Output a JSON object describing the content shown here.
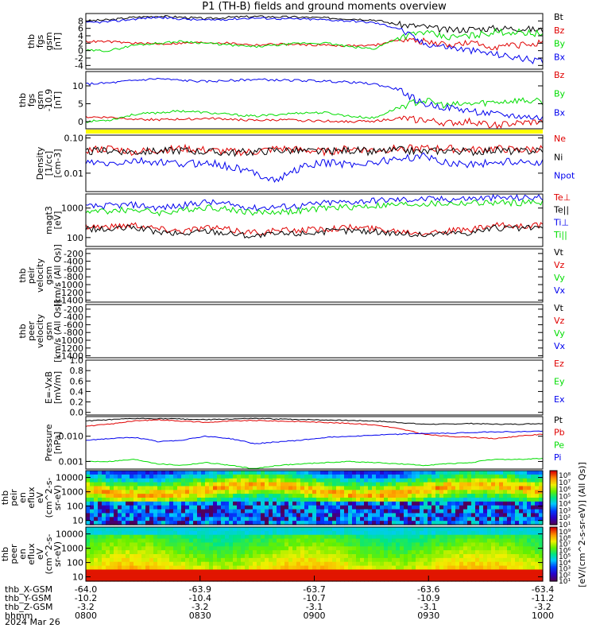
{
  "title": "P1 (TH-B) fields and ground moments overview",
  "date": "2024 Mar 26",
  "colors": {
    "black": "#000000",
    "red": "#e00000",
    "green": "#00dd00",
    "blue": "#0000ee",
    "yellow": "#ffff00"
  },
  "colorbar_top": {
    "ticks": [
      "10⁸",
      "10⁷",
      "10⁶",
      "10⁵",
      "10⁴",
      "10³",
      "10²",
      "10¹"
    ]
  },
  "colorbar_bottom": {
    "ticks": [
      "10⁹",
      "10⁸",
      "10⁷",
      "10⁶",
      "10⁵",
      "10⁴",
      "10³",
      "10²",
      "10¹"
    ]
  },
  "colorbar_label": "[eV/(cm^2-s-sr-eV)] (All Qs)]",
  "axis_footer": {
    "rows": [
      {
        "label": "thb_X-GSM",
        "values": [
          "-64.0",
          "-63.9",
          "-63.7",
          "-63.6",
          "-63.4"
        ]
      },
      {
        "label": "thb_Y-GSM",
        "values": [
          "-10.2",
          "-10.4",
          "-10.7",
          "-10.9",
          "-11.2"
        ]
      },
      {
        "label": "thb_Z-GSM",
        "values": [
          "-3.2",
          "-3.2",
          "-3.1",
          "-3.1",
          "-3.2"
        ]
      },
      {
        "label": "hhmm",
        "values": [
          "0800",
          "0830",
          "0900",
          "0930",
          "1000"
        ]
      }
    ]
  },
  "chart_data": [
    {
      "type": "line",
      "id": "fgs",
      "ylabel": [
        "thb",
        "fgs",
        "gsm",
        "[nT]"
      ],
      "ylim": [
        -5,
        10
      ],
      "yticks": [
        "8",
        "6",
        "4",
        "2",
        "0",
        "-2",
        "-4"
      ],
      "series": [
        {
          "name": "Bt",
          "color": "black",
          "values": [
            8.0,
            8.3,
            9.0,
            9.3,
            9.0,
            8.6,
            9.0,
            9.2,
            9.1,
            9.0,
            8.8,
            8.6,
            8.3,
            7.0,
            6.5,
            5.5,
            5.8,
            6.0,
            6.0,
            5.5
          ]
        },
        {
          "name": "Bz",
          "color": "red",
          "values": [
            2.5,
            2.4,
            2.0,
            1.8,
            2.0,
            2.2,
            2.0,
            1.5,
            1.8,
            1.6,
            1.5,
            1.3,
            1.4,
            3.0,
            2.5,
            1.5,
            2.0,
            1.0,
            1.5,
            2.0
          ]
        },
        {
          "name": "By",
          "color": "green",
          "values": [
            0.0,
            0.0,
            1.5,
            2.0,
            2.5,
            2.0,
            1.5,
            1.0,
            1.5,
            2.0,
            2.0,
            1.0,
            0.5,
            3.5,
            5.0,
            3.5,
            4.0,
            5.0,
            5.0,
            4.5
          ]
        },
        {
          "name": "Bx",
          "color": "blue",
          "values": [
            7.5,
            7.8,
            8.5,
            9.0,
            8.5,
            8.2,
            8.5,
            8.8,
            8.6,
            8.5,
            8.3,
            8.0,
            7.5,
            6.0,
            2.0,
            1.0,
            0.0,
            -1.0,
            -2.0,
            -3.0
          ]
        }
      ]
    },
    {
      "type": "line",
      "id": "fgs_dsl",
      "ylabel": [
        "thb",
        "fgs",
        "gsm",
        "-10.9",
        "[nT]"
      ],
      "ylim": [
        -2,
        14
      ],
      "yticks": [
        "10",
        "5",
        "0"
      ],
      "series": [
        {
          "name": "Bz",
          "color": "red",
          "values": [
            1.3,
            1.2,
            0.8,
            0.5,
            0.7,
            0.9,
            0.7,
            0.3,
            0.5,
            0.3,
            0.2,
            0.0,
            0.2,
            0.8,
            0.5,
            -0.5,
            0.0,
            -1.0,
            -0.5,
            0.0
          ]
        },
        {
          "name": "By",
          "color": "green",
          "values": [
            0.0,
            0.5,
            2.0,
            2.5,
            3.0,
            2.5,
            2.0,
            1.5,
            2.0,
            2.5,
            2.5,
            1.5,
            1.0,
            4.0,
            6.0,
            4.5,
            5.0,
            5.5,
            6.0,
            5.5
          ]
        },
        {
          "name": "Bx",
          "color": "blue",
          "values": [
            10.5,
            10.8,
            11.5,
            12.0,
            11.5,
            11.2,
            11.5,
            11.8,
            11.6,
            11.5,
            11.3,
            11.0,
            10.5,
            9.0,
            5.0,
            4.0,
            3.0,
            2.0,
            1.5,
            1.0
          ]
        }
      ]
    },
    {
      "type": "line",
      "id": "density",
      "log": true,
      "ylabel": [
        "Density",
        "[1/cc]",
        "[cm-3]"
      ],
      "ylim": [
        0.003,
        0.12
      ],
      "yticks": [
        "0.10",
        "0.01"
      ],
      "series": [
        {
          "name": "Ne",
          "color": "red",
          "values": [
            0.045,
            0.05,
            0.04,
            0.045,
            0.05,
            0.045,
            0.04,
            0.04,
            0.05,
            0.045,
            0.04,
            0.05,
            0.045,
            0.05,
            0.05,
            0.05,
            0.045,
            0.05,
            0.045,
            0.05
          ]
        },
        {
          "name": "Ni",
          "color": "black",
          "values": [
            0.04,
            0.045,
            0.04,
            0.042,
            0.045,
            0.04,
            0.038,
            0.04,
            0.045,
            0.042,
            0.04,
            0.045,
            0.04,
            0.045,
            0.04,
            0.045,
            0.04,
            0.045,
            0.04,
            0.045
          ]
        },
        {
          "name": "Npot",
          "color": "blue",
          "values": [
            0.02,
            0.018,
            0.022,
            0.02,
            0.018,
            0.02,
            0.015,
            0.01,
            0.006,
            0.015,
            0.02,
            0.018,
            0.02,
            0.025,
            0.03,
            0.02,
            0.018,
            0.02,
            0.022,
            0.02
          ]
        }
      ]
    },
    {
      "type": "line",
      "id": "temp",
      "log": true,
      "ylabel": [
        "magt3",
        "[eV]"
      ],
      "ylim": [
        50,
        3000
      ],
      "yticks": [
        "1000",
        "100"
      ],
      "series": [
        {
          "name": "Te⊥",
          "color": "red",
          "values": [
            250,
            230,
            280,
            200,
            170,
            220,
            180,
            150,
            170,
            180,
            200,
            220,
            200,
            170,
            150,
            170,
            180,
            250,
            250,
            260
          ]
        },
        {
          "name": "Te||",
          "color": "black",
          "values": [
            200,
            180,
            220,
            150,
            130,
            170,
            140,
            110,
            130,
            140,
            160,
            170,
            160,
            140,
            120,
            140,
            150,
            210,
            200,
            220
          ]
        },
        {
          "name": "Ti⊥",
          "color": "blue",
          "values": [
            1100,
            1200,
            1300,
            1000,
            1200,
            1600,
            1300,
            1000,
            1100,
            1200,
            1500,
            1600,
            1800,
            1900,
            2000,
            2000,
            2100,
            2200,
            2200,
            2300
          ]
        },
        {
          "name": "Ti||",
          "color": "green",
          "values": [
            750,
            800,
            900,
            700,
            800,
            1100,
            900,
            700,
            750,
            800,
            1000,
            1100,
            1200,
            1300,
            1400,
            1400,
            1500,
            1500,
            1500,
            1600
          ]
        }
      ]
    },
    {
      "type": "line",
      "id": "peir_vel",
      "ylabel": [
        "thb",
        "peir",
        "velocity",
        "gsm",
        "[km/s (All Qs)]"
      ],
      "ylim": [
        -1450,
        -80
      ],
      "yticks": [
        "-200",
        "-400",
        "-600",
        "-800",
        "-1000",
        "-1200",
        "-1400"
      ],
      "series": [
        {
          "name": "Vt",
          "color": "black",
          "values": []
        },
        {
          "name": "Vz",
          "color": "red",
          "values": []
        },
        {
          "name": "Vy",
          "color": "green",
          "values": []
        },
        {
          "name": "Vx",
          "color": "blue",
          "values": []
        }
      ]
    },
    {
      "type": "line",
      "id": "peer_vel",
      "ylabel": [
        "thb",
        "peer",
        "velocity",
        "gsm",
        "[km/s (All Qs)]"
      ],
      "ylim": [
        -1450,
        -80
      ],
      "yticks": [
        "-200",
        "-400",
        "-600",
        "-800",
        "-1000",
        "-1200",
        "-1400"
      ],
      "series": [
        {
          "name": "Vt",
          "color": "black",
          "values": []
        },
        {
          "name": "Vz",
          "color": "red",
          "values": []
        },
        {
          "name": "Vy",
          "color": "green",
          "values": []
        },
        {
          "name": "Vx",
          "color": "blue",
          "values": []
        }
      ]
    },
    {
      "type": "line",
      "id": "efield",
      "ylabel": [
        "E=-VxB",
        "[mV/m]"
      ],
      "ylim": [
        -0.05,
        1.0
      ],
      "yticks": [
        "1.0",
        "0.8",
        "0.6",
        "0.4",
        "0.2",
        "0.0"
      ],
      "series": [
        {
          "name": "Ez",
          "color": "red",
          "values": []
        },
        {
          "name": "Ey",
          "color": "green",
          "values": []
        },
        {
          "name": "Ex",
          "color": "blue",
          "values": []
        }
      ]
    },
    {
      "type": "line",
      "id": "pressure",
      "log": true,
      "ylabel": [
        "Pressure",
        "[nPa]"
      ],
      "ylim": [
        0.0005,
        0.06
      ],
      "yticks": [
        "0.010",
        "0.001"
      ],
      "series": [
        {
          "name": "Pt",
          "color": "black",
          "values": [
            0.04,
            0.045,
            0.05,
            0.05,
            0.048,
            0.045,
            0.048,
            0.05,
            0.048,
            0.046,
            0.044,
            0.042,
            0.04,
            0.035,
            0.03,
            0.03,
            0.032,
            0.03,
            0.03,
            0.032
          ]
        },
        {
          "name": "Pb",
          "color": "red",
          "values": [
            0.025,
            0.03,
            0.04,
            0.045,
            0.04,
            0.035,
            0.04,
            0.042,
            0.04,
            0.038,
            0.035,
            0.032,
            0.028,
            0.02,
            0.012,
            0.01,
            0.009,
            0.008,
            0.01,
            0.012
          ]
        },
        {
          "name": "Pe",
          "color": "green",
          "values": [
            0.001,
            0.001,
            0.0012,
            0.0008,
            0.0007,
            0.0009,
            0.0007,
            0.0005,
            0.0007,
            0.0008,
            0.0009,
            0.001,
            0.0009,
            0.0008,
            0.0007,
            0.0008,
            0.0009,
            0.0012,
            0.0012,
            0.0013
          ]
        },
        {
          "name": "Pi",
          "color": "blue",
          "values": [
            0.007,
            0.008,
            0.009,
            0.006,
            0.007,
            0.01,
            0.008,
            0.005,
            0.006,
            0.007,
            0.009,
            0.01,
            0.011,
            0.012,
            0.013,
            0.013,
            0.014,
            0.015,
            0.015,
            0.016
          ]
        }
      ]
    },
    {
      "type": "heatmap",
      "id": "peir_spec",
      "ylabel": [
        "thb",
        "peir",
        "en",
        "eflux",
        "eV",
        "(cm^2-s-",
        "sr-eV)"
      ],
      "ylim": [
        5,
        30000
      ],
      "yticks": [
        "10000",
        "1000",
        "100",
        "10"
      ],
      "zrange": [
        10,
        100000000.0
      ]
    },
    {
      "type": "heatmap",
      "id": "peer_spec",
      "ylabel": [
        "thb",
        "peer",
        "en",
        "eflux",
        "eV",
        "(cm^2-s-",
        "sr-eV)"
      ],
      "ylim": [
        5,
        30000
      ],
      "yticks": [
        "10000",
        "1000",
        "100",
        "10"
      ],
      "zrange": [
        10,
        1000000000.0
      ]
    }
  ]
}
